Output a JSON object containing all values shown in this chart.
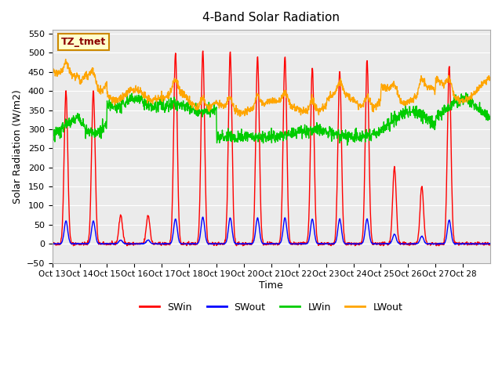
{
  "title": "4-Band Solar Radiation",
  "xlabel": "Time",
  "ylabel": "Solar Radiation (W/m2)",
  "annotation": "TZ_tmet",
  "ylim": [
    -50,
    560
  ],
  "yticks": [
    -50,
    0,
    50,
    100,
    150,
    200,
    250,
    300,
    350,
    400,
    450,
    500,
    550
  ],
  "x_labels": [
    "Oct 13",
    "Oct 14",
    "Oct 15",
    "Oct 16",
    "Oct 17",
    "Oct 18",
    "Oct 19",
    "Oct 20",
    "Oct 21",
    "Oct 22",
    "Oct 23",
    "Oct 24",
    "Oct 25",
    "Oct 26",
    "Oct 27",
    "Oct 28"
  ],
  "colors": {
    "SWin": "#ff0000",
    "SWout": "#0000ff",
    "LWin": "#00cc00",
    "LWout": "#ffa500"
  },
  "plot_bg": "#ebebeb",
  "grid_color": "#ffffff",
  "linewidth": 1.0,
  "num_days": 16,
  "points_per_day": 96,
  "sw_peaks": [
    400,
    400,
    75,
    75,
    500,
    505,
    500,
    490,
    490,
    460,
    450,
    480,
    200,
    150,
    465,
    0
  ],
  "swo_peaks": [
    60,
    60,
    10,
    10,
    65,
    70,
    68,
    68,
    68,
    65,
    65,
    65,
    25,
    20,
    62,
    0
  ]
}
